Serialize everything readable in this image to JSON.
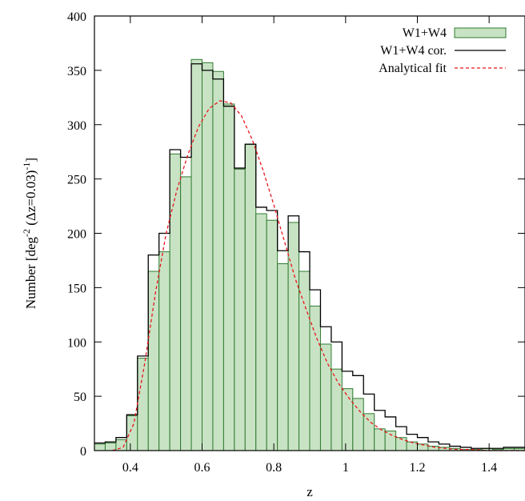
{
  "chart_data": {
    "type": "bar",
    "xlabel": "z",
    "ylabel": "Number [deg-2 (Δz=0.03)-1]",
    "ylabel_parts": {
      "prefix": "Number  [deg",
      "sup1": "-2",
      "middle": " (Δz=0.03)",
      "sup2": "-1",
      "suffix": "]"
    },
    "xlim": [
      0.3,
      1.5
    ],
    "ylim": [
      0,
      400
    ],
    "x_ticks": [
      0.4,
      0.6,
      0.8,
      1.0,
      1.2,
      1.4
    ],
    "x_tick_labels": [
      "0.4",
      "0.6",
      "0.8",
      "1",
      "1.2",
      "1.4"
    ],
    "y_ticks": [
      0,
      50,
      100,
      150,
      200,
      250,
      300,
      350,
      400
    ],
    "y_tick_labels": [
      "0",
      "50",
      "100",
      "150",
      "200",
      "250",
      "300",
      "350",
      "400"
    ],
    "grid": false,
    "legend_position": "top-right",
    "bin_width": 0.03,
    "bin_edges_start": 0.3,
    "series": [
      {
        "name": "W1+W4",
        "style": "filled-bars",
        "values": [
          6,
          7,
          10,
          32,
          85,
          165,
          183,
          273,
          252,
          360,
          357,
          349,
          319,
          259,
          282,
          218,
          212,
          172,
          210,
          165,
          133,
          98,
          75,
          57,
          48,
          34,
          20,
          18,
          12,
          8,
          6,
          4,
          3,
          2,
          1,
          1,
          2,
          1,
          2,
          2
        ]
      },
      {
        "name": "W1+W4 cor.",
        "style": "step",
        "values": [
          7,
          8,
          12,
          33,
          87,
          180,
          200,
          277,
          270,
          356,
          350,
          342,
          317,
          260,
          282,
          224,
          221,
          184,
          216,
          183,
          148,
          114,
          100,
          73,
          69,
          52,
          37,
          31,
          22,
          15,
          12,
          8,
          6,
          4,
          3,
          2,
          2,
          2,
          3,
          3
        ]
      },
      {
        "name": "Analytical fit",
        "style": "dashed-line",
        "x": [
          0.35,
          0.38,
          0.41,
          0.44,
          0.47,
          0.5,
          0.53,
          0.56,
          0.59,
          0.62,
          0.65,
          0.68,
          0.71,
          0.74,
          0.77,
          0.8,
          0.83,
          0.86,
          0.89,
          0.92,
          0.95,
          0.98,
          1.01,
          1.04,
          1.07,
          1.1,
          1.13,
          1.16,
          1.19,
          1.22,
          1.25,
          1.28,
          1.31,
          1.35,
          1.4,
          1.45,
          1.5
        ],
        "y": [
          0,
          3,
          25,
          80,
          145,
          200,
          240,
          272,
          298,
          315,
          322,
          320,
          308,
          286,
          258,
          226,
          192,
          158,
          130,
          103,
          80,
          62,
          48,
          36,
          26,
          19,
          14,
          10,
          7,
          5,
          3,
          2,
          1,
          1,
          0,
          0,
          0
        ]
      }
    ]
  },
  "colors": {
    "bar_fill": "#c8e3c4",
    "bar_edge": "#2f7a2f",
    "step_line": "#000000",
    "fit_line": "#e8161b",
    "axes": "#000000"
  }
}
